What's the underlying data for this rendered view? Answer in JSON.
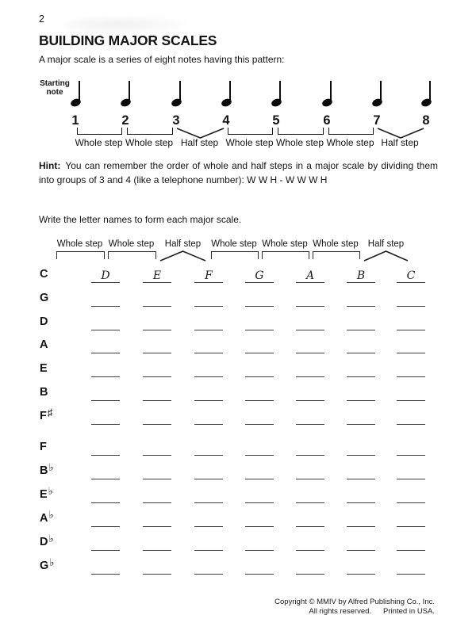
{
  "page": {
    "number": "2",
    "title": "BUILDING MAJOR SCALES",
    "intro": "A major scale is a series of eight notes having this pattern:",
    "hint": {
      "label": "Hint:",
      "text": "You can remember the order of whole and half steps in a major scale by dividing them into groups of 3 and 4 (like a telephone number):  W W H - W W W H"
    },
    "instruction": "Write the letter names to form each major scale.",
    "copyright": {
      "line1": "Copyright © MMIV by Alfred Publishing Co., Inc.",
      "line2_left": "All rights reserved.",
      "line2_right": "Printed in USA."
    }
  },
  "diagram": {
    "starting_note_label": [
      "Starting",
      "note"
    ],
    "note_numbers": [
      "1",
      "2",
      "3",
      "4",
      "5",
      "6",
      "7",
      "8"
    ],
    "steps": [
      {
        "label": "Whole step",
        "type": "whole"
      },
      {
        "label": "Whole step",
        "type": "whole"
      },
      {
        "label": "Half step",
        "type": "half"
      },
      {
        "label": "Whole step",
        "type": "whole"
      },
      {
        "label": "Whole step",
        "type": "whole"
      },
      {
        "label": "Whole step",
        "type": "whole"
      },
      {
        "label": "Half step",
        "type": "half"
      }
    ]
  },
  "worksheet": {
    "header_steps": [
      {
        "label": "Whole step",
        "type": "whole"
      },
      {
        "label": "Whole step",
        "type": "whole"
      },
      {
        "label": "Half step",
        "type": "half"
      },
      {
        "label": "Whole step",
        "type": "whole"
      },
      {
        "label": "Whole step",
        "type": "whole"
      },
      {
        "label": "Whole step",
        "type": "whole"
      },
      {
        "label": "Half step",
        "type": "half"
      }
    ],
    "row_groups": [
      {
        "name": "sharp-keys",
        "rows": [
          {
            "root": "C",
            "accidental": "",
            "answers": [
              "D",
              "E",
              "F",
              "G",
              "A",
              "B",
              "C"
            ]
          },
          {
            "root": "G",
            "accidental": "",
            "answers": [
              "",
              "",
              "",
              "",
              "",
              "",
              ""
            ]
          },
          {
            "root": "D",
            "accidental": "",
            "answers": [
              "",
              "",
              "",
              "",
              "",
              "",
              ""
            ]
          },
          {
            "root": "A",
            "accidental": "",
            "answers": [
              "",
              "",
              "",
              "",
              "",
              "",
              ""
            ]
          },
          {
            "root": "E",
            "accidental": "",
            "answers": [
              "",
              "",
              "",
              "",
              "",
              "",
              ""
            ]
          },
          {
            "root": "B",
            "accidental": "",
            "answers": [
              "",
              "",
              "",
              "",
              "",
              "",
              ""
            ]
          },
          {
            "root": "F",
            "accidental": "♯",
            "answers": [
              "",
              "",
              "",
              "",
              "",
              "",
              ""
            ]
          }
        ]
      },
      {
        "name": "flat-keys",
        "rows": [
          {
            "root": "F",
            "accidental": "",
            "answers": [
              "",
              "",
              "",
              "",
              "",
              "",
              ""
            ]
          },
          {
            "root": "B",
            "accidental": "♭",
            "answers": [
              "",
              "",
              "",
              "",
              "",
              "",
              ""
            ]
          },
          {
            "root": "E",
            "accidental": "♭",
            "answers": [
              "",
              "",
              "",
              "",
              "",
              "",
              ""
            ]
          },
          {
            "root": "A",
            "accidental": "♭",
            "answers": [
              "",
              "",
              "",
              "",
              "",
              "",
              ""
            ]
          },
          {
            "root": "D",
            "accidental": "♭",
            "answers": [
              "",
              "",
              "",
              "",
              "",
              "",
              ""
            ]
          },
          {
            "root": "G",
            "accidental": "♭",
            "answers": [
              "",
              "",
              "",
              "",
              "",
              "",
              ""
            ]
          }
        ]
      }
    ]
  }
}
